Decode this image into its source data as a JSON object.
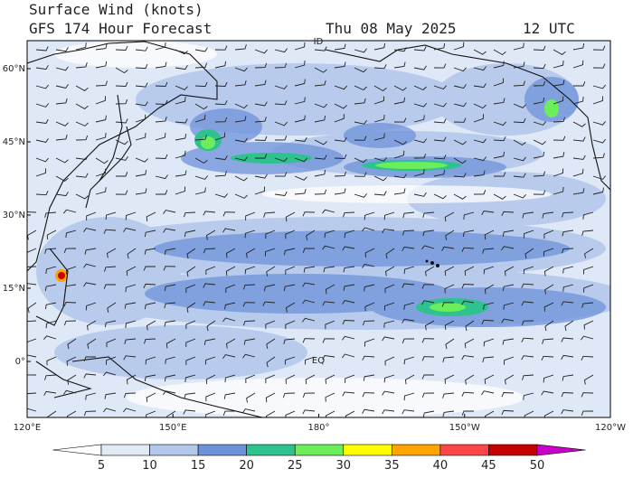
{
  "header": {
    "title": "Surface Wind (knots)",
    "subtitle": "GFS 174 Hour Forecast",
    "date": "Thu 08 May 2025",
    "time": "12 UTC"
  },
  "map": {
    "lat_labels": [
      {
        "value": 60,
        "label": "60°N"
      },
      {
        "value": 45,
        "label": "45°N"
      },
      {
        "value": 30,
        "label": "30°N"
      },
      {
        "value": 15,
        "label": "15°N"
      },
      {
        "value": 0,
        "label": "0°"
      }
    ],
    "lon_labels": [
      {
        "value": 120,
        "label": "120°E"
      },
      {
        "value": 150,
        "label": "150°E"
      },
      {
        "value": 180,
        "label": "180°"
      },
      {
        "value": 210,
        "label": "150°W"
      },
      {
        "value": 240,
        "label": "120°W"
      }
    ],
    "markers": [
      "ID",
      "EQ"
    ]
  },
  "colorbar": {
    "ticks": [
      5,
      10,
      15,
      20,
      25,
      30,
      35,
      40,
      45,
      50
    ],
    "colors": [
      "#ffffff",
      "#e2eaf6",
      "#b4c8ec",
      "#6e92da",
      "#2ec28e",
      "#6cee5c",
      "#ffff00",
      "#ffa400",
      "#ff4646",
      "#c40000",
      "#cc00cc"
    ]
  }
}
